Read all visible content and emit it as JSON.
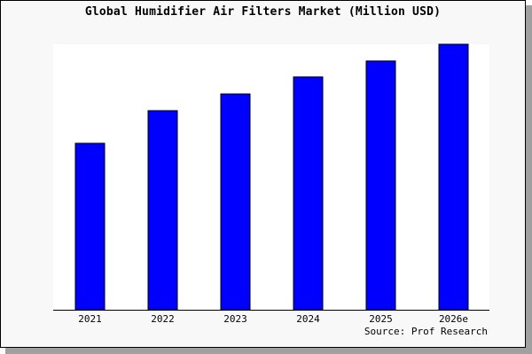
{
  "chart_data": {
    "type": "bar",
    "title": "Global Humidifier Air Filters Market (Million USD)",
    "categories": [
      "2021",
      "2022",
      "2023",
      "2024",
      "2025",
      "2026e"
    ],
    "values": [
      62.7,
      75.0,
      81.3,
      87.7,
      93.7,
      100.0
    ],
    "value_note_hidden": null,
    "xlabel": "",
    "ylabel": "",
    "ylim": [
      0,
      100
    ],
    "grid": false,
    "bar_color": "#0000ff",
    "source": "Source: Prof Research"
  }
}
